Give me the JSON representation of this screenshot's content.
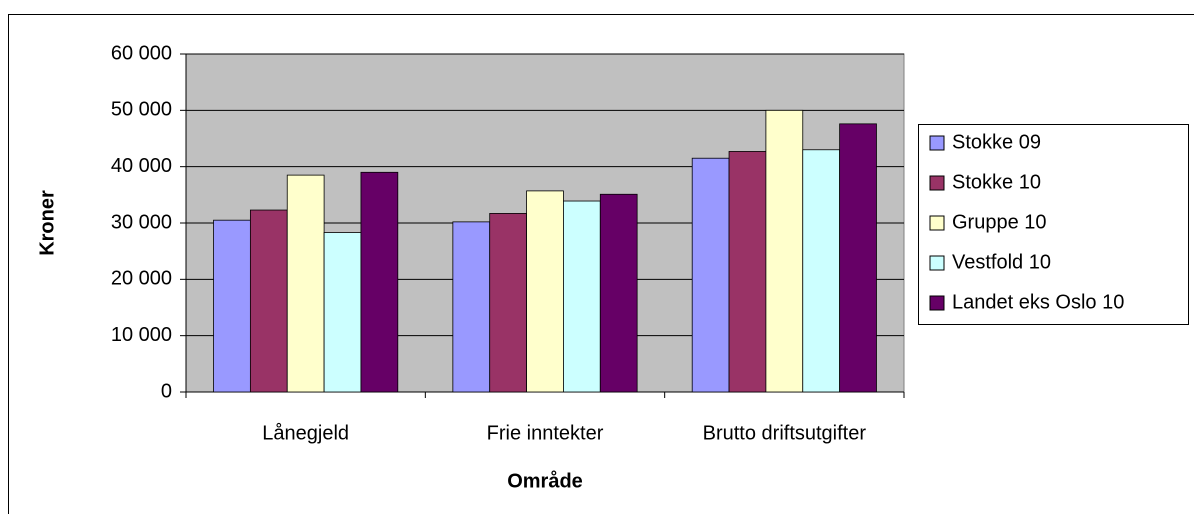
{
  "chart_data": {
    "type": "bar",
    "xlabel": "Område",
    "ylabel": "Kroner",
    "categories": [
      "Lånegjeld",
      "Frie inntekter",
      "Brutto driftsutgifter"
    ],
    "series": [
      {
        "name": "Stokke 09",
        "color": "#9999ff",
        "values": [
          30500,
          30200,
          41500
        ]
      },
      {
        "name": "Stokke 10",
        "color": "#993366",
        "values": [
          32300,
          31700,
          42700
        ]
      },
      {
        "name": "Gruppe 10",
        "color": "#ffffcc",
        "values": [
          38500,
          35700,
          50000
        ]
      },
      {
        "name": "Vestfold 10",
        "color": "#ccffff",
        "values": [
          28300,
          33900,
          43000
        ]
      },
      {
        "name": "Landet eks Oslo 10",
        "color": "#660066",
        "values": [
          39000,
          35100,
          47600
        ]
      }
    ],
    "ylim": [
      0,
      60000
    ],
    "yticks": [
      {
        "value": 0,
        "label": "0"
      },
      {
        "value": 10000,
        "label": "10 000"
      },
      {
        "value": 20000,
        "label": "20 000"
      },
      {
        "value": 30000,
        "label": "30 000"
      },
      {
        "value": 40000,
        "label": "40 000"
      },
      {
        "value": 50000,
        "label": "50 000"
      },
      {
        "value": 60000,
        "label": "60 000"
      }
    ],
    "grid": true,
    "legend": "right"
  }
}
